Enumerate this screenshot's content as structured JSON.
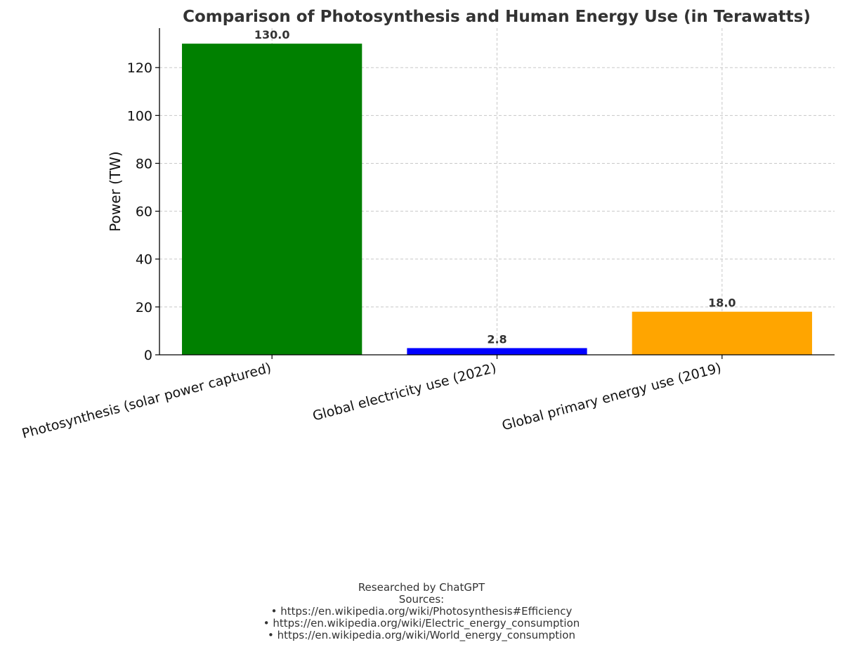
{
  "chart_data": {
    "type": "bar",
    "title": "Comparison of Photosynthesis and Human Energy Use (in Terawatts)",
    "xlabel": "",
    "ylabel": "Power (TW)",
    "categories": [
      "Photosynthesis (solar power captured)",
      "Global electricity use (2022)",
      "Global primary energy use (2019)"
    ],
    "values": [
      130.0,
      2.8,
      18.0
    ],
    "data_labels": [
      "130.0",
      "2.8",
      "18.0"
    ],
    "colors": [
      "#008000",
      "#0000ff",
      "#ffa500"
    ],
    "ylim": [
      0,
      136.5
    ],
    "yticks": [
      0,
      20,
      40,
      60,
      80,
      100,
      120
    ],
    "grid": true
  },
  "footer": {
    "researched_by": "Researched by ChatGPT",
    "sources_label": "Sources:",
    "sources": [
      "• https://en.wikipedia.org/wiki/Photosynthesis#Efficiency",
      "• https://en.wikipedia.org/wiki/Electric_energy_consumption",
      "• https://en.wikipedia.org/wiki/World_energy_consumption"
    ]
  }
}
